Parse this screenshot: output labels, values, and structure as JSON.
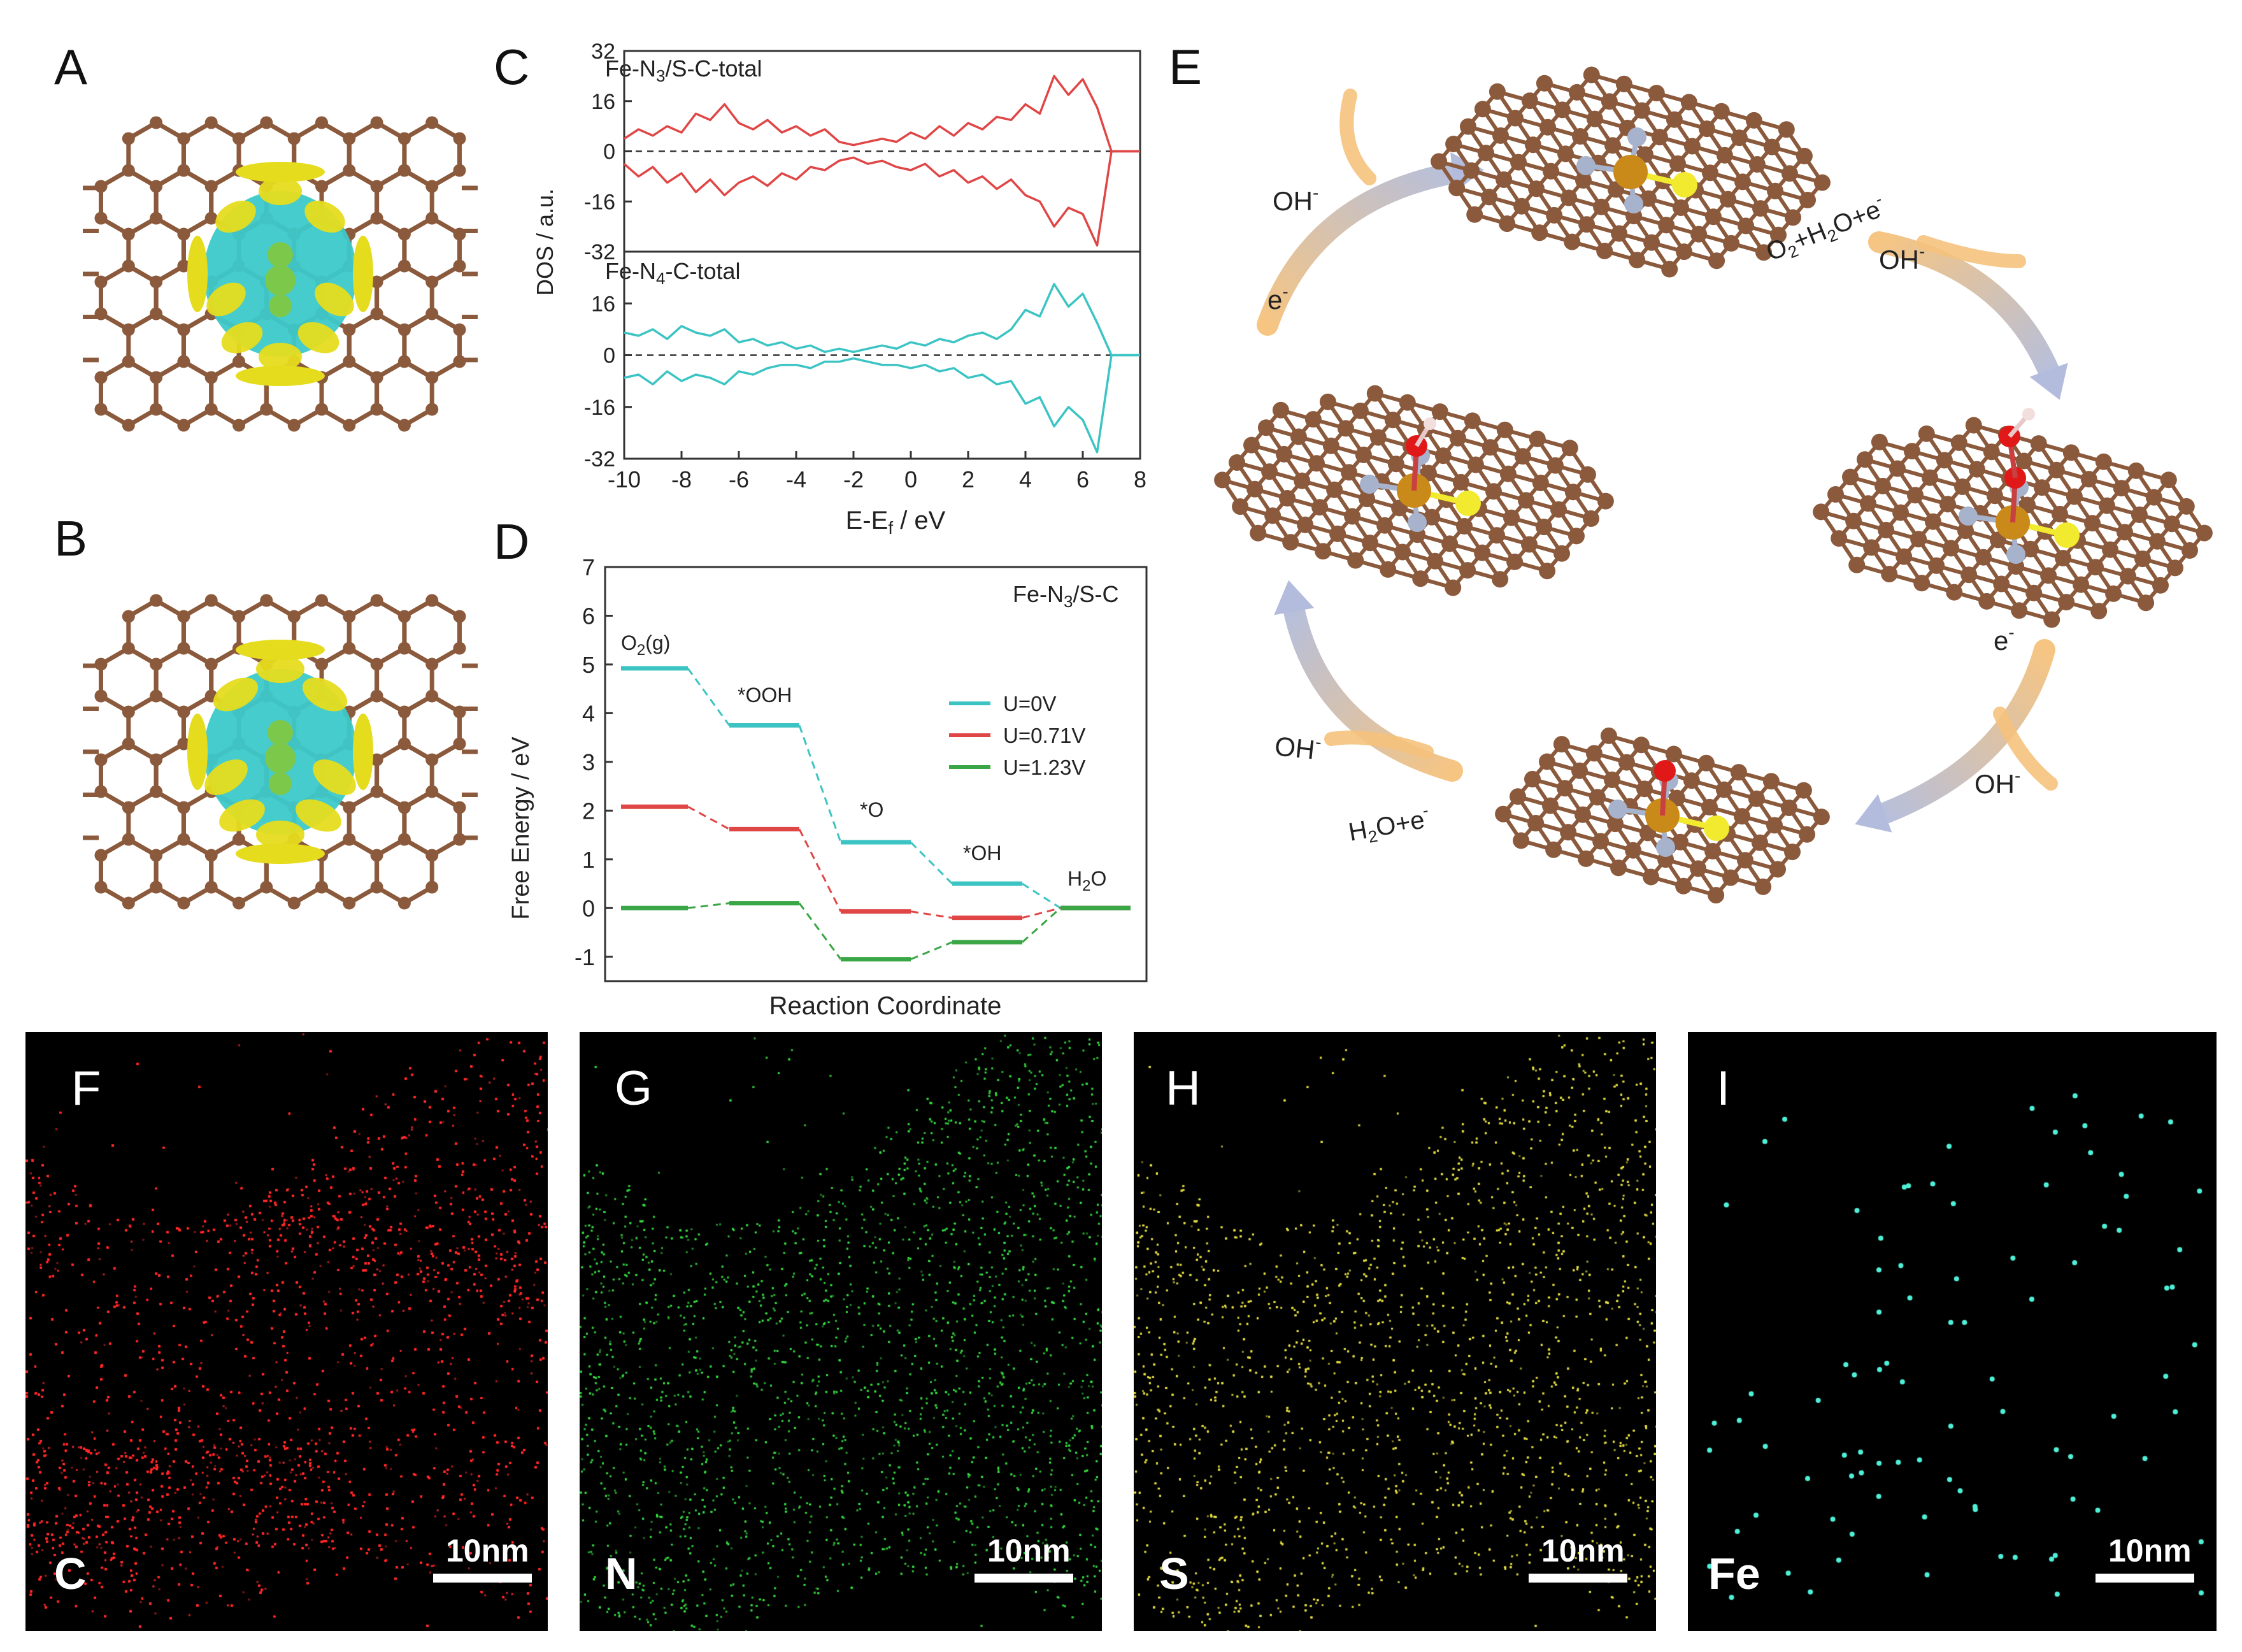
{
  "panel_labels": {
    "A": "A",
    "B": "B",
    "C": "C",
    "D": "D",
    "E": "E",
    "F": "F",
    "G": "G",
    "H": "H",
    "I": "I"
  },
  "colors": {
    "carbon": "#8b5a3c",
    "nitrogen": "#a7b2cc",
    "sulfur": "#f2ea2e",
    "iron": "#c98a1a",
    "oxygen": "#e01818",
    "cyan_lobe": "#3cc9c9",
    "yellow_lobe": "#e6dc1e",
    "dos_top": "#e04646",
    "dos_bottom": "#3cc4c4",
    "u0": "#3cc4c4",
    "u071": "#e04646",
    "u123": "#3aa645",
    "map_C": "#ff2a2a",
    "map_N": "#35e040",
    "map_S": "#e6e040",
    "map_Fe": "#4ef0d8"
  },
  "chart_data": [
    {
      "type": "line",
      "panel": "C",
      "ylabel": "DOS / a.u.",
      "xlabel": "E-E_f / eV",
      "xlim": [
        -10,
        8
      ],
      "xticks": [
        -10,
        -8,
        -6,
        -4,
        -2,
        0,
        2,
        4,
        6,
        8
      ],
      "subplots": [
        {
          "name": "Fe-N3/S-C-total",
          "name_main": "Fe-N",
          "name_sub": "3",
          "name_tail": "/S-C-total",
          "ylim": [
            -32,
            32
          ],
          "yticks": [
            32,
            16,
            0,
            -16,
            -32
          ],
          "x": [
            -10,
            -9.5,
            -9,
            -8.5,
            -8,
            -7.5,
            -7,
            -6.5,
            -6,
            -5.5,
            -5,
            -4.5,
            -4,
            -3.5,
            -3,
            -2.5,
            -2,
            -1.5,
            -1,
            -0.5,
            0,
            0.5,
            1,
            1.5,
            2,
            2.5,
            3,
            3.5,
            4,
            4.5,
            5,
            5.5,
            6,
            6.5,
            7,
            7.5,
            8
          ],
          "up": [
            4,
            7,
            5,
            8,
            6,
            12,
            10,
            15,
            9,
            7,
            10,
            6,
            8,
            5,
            7,
            3,
            2,
            3,
            4,
            3,
            6,
            4,
            8,
            5,
            9,
            7,
            11,
            10,
            15,
            12,
            24,
            18,
            23,
            14,
            0,
            0,
            0
          ],
          "down": [
            -4,
            -8,
            -5,
            -10,
            -7,
            -13,
            -9,
            -14,
            -10,
            -8,
            -11,
            -7,
            -9,
            -5,
            -6,
            -3,
            -2,
            -4,
            -3,
            -5,
            -6,
            -4,
            -8,
            -6,
            -10,
            -8,
            -12,
            -9,
            -14,
            -16,
            -24,
            -18,
            -20,
            -30,
            0,
            0,
            0
          ]
        },
        {
          "name": "Fe-N4-C-total",
          "name_main": "Fe-N",
          "name_sub": "4",
          "name_tail": "-C-total",
          "ylim": [
            -32,
            32
          ],
          "yticks": [
            16,
            0,
            -16,
            -32
          ],
          "x": [
            -10,
            -9.5,
            -9,
            -8.5,
            -8,
            -7.5,
            -7,
            -6.5,
            -6,
            -5.5,
            -5,
            -4.5,
            -4,
            -3.5,
            -3,
            -2.5,
            -2,
            -1.5,
            -1,
            -0.5,
            0,
            0.5,
            1,
            1.5,
            2,
            2.5,
            3,
            3.5,
            4,
            4.5,
            5,
            5.5,
            6,
            6.5,
            7,
            7.5,
            8
          ],
          "up": [
            7,
            6,
            8,
            5,
            9,
            7,
            6,
            8,
            4,
            5,
            3,
            4,
            2,
            3,
            1,
            2,
            1,
            2,
            3,
            2,
            4,
            3,
            5,
            4,
            6,
            7,
            5,
            8,
            14,
            12,
            22,
            15,
            19,
            10,
            0,
            0,
            0
          ],
          "down": [
            -7,
            -6,
            -9,
            -5,
            -8,
            -6,
            -7,
            -9,
            -5,
            -6,
            -4,
            -3,
            -3,
            -4,
            -2,
            -2,
            -1,
            -2,
            -3,
            -3,
            -4,
            -3,
            -5,
            -4,
            -7,
            -6,
            -9,
            -8,
            -15,
            -13,
            -22,
            -16,
            -20,
            -30,
            0,
            0,
            0
          ]
        }
      ]
    },
    {
      "type": "line",
      "panel": "D",
      "title": "Fe-N3/S-C",
      "title_main": "Fe-N",
      "title_sub": "3",
      "title_tail": "/S-C",
      "xlabel": "Reaction Coordinate",
      "ylabel": "Free Energy / eV",
      "ylim": [
        -1.5,
        7
      ],
      "yticks": [
        -1,
        0,
        1,
        2,
        3,
        4,
        5,
        6,
        7
      ],
      "steps": [
        "O2(g)",
        "*OOH",
        "*O",
        "*OH",
        "H2O"
      ],
      "series": [
        {
          "name": "U=0V",
          "values": [
            4.92,
            3.75,
            1.35,
            0.5,
            0
          ]
        },
        {
          "name": "U=0.71V",
          "values": [
            2.08,
            1.62,
            -0.07,
            -0.2,
            0
          ]
        },
        {
          "name": "U=1.23V",
          "values": [
            0,
            0.1,
            -1.05,
            -0.7,
            0
          ]
        }
      ]
    }
  ],
  "panelD_labels": {
    "o2_main": "O",
    "o2_sub": "2",
    "o2_tail": "(g)",
    "ooh": "*OOH",
    "o": "*O",
    "oh": "*OH",
    "h2o_main": "H",
    "h2o_sub": "2",
    "h2o_tail": "O"
  },
  "cycle_labels": {
    "oh1": "OH",
    "oh1_sup": "-",
    "e1": "e",
    "e1_sup": "-",
    "react_main": "O",
    "react_sub": "2",
    "react_mid": "+H",
    "react_sub2": "2",
    "react_mid2": "O+e",
    "react_sup": "-",
    "oh2": "OH",
    "oh2_sup": "-",
    "e2": "e",
    "e2_sup": "-",
    "oh3": "OH",
    "oh3_sup": "-",
    "h2o_main": "H",
    "h2o_sub": "2",
    "h2o_tail": "O+e",
    "h2o_sup": "-",
    "oh4": "OH",
    "oh4_sup": "-"
  },
  "maps": [
    {
      "panel": "F",
      "element": "C",
      "scale": "10nm"
    },
    {
      "panel": "G",
      "element": "N",
      "scale": "10nm"
    },
    {
      "panel": "H",
      "element": "S",
      "scale": "10nm"
    },
    {
      "panel": "I",
      "element": "Fe",
      "scale": "10nm"
    }
  ]
}
